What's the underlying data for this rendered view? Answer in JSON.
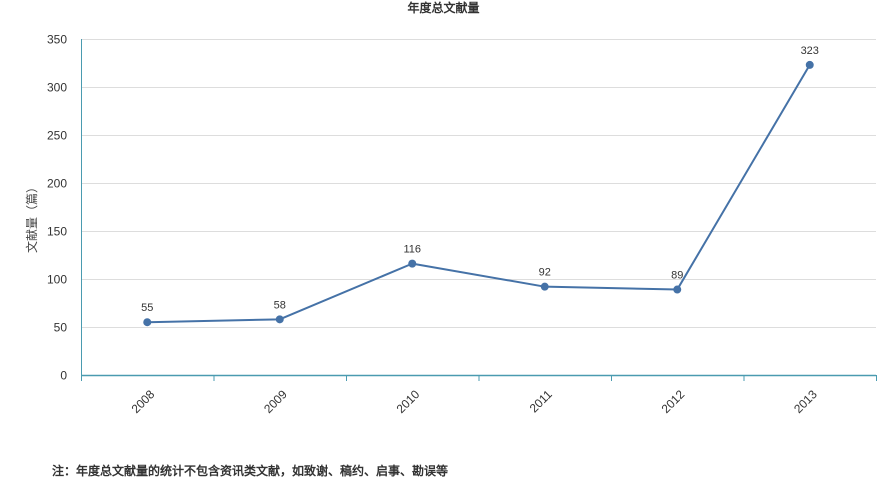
{
  "chart_data": {
    "type": "line",
    "title": "年度总文献量",
    "ylabel": "文献量（篇）",
    "xlabel": "",
    "categories": [
      "2008",
      "2009",
      "2010",
      "2011",
      "2012",
      "2013"
    ],
    "series": [
      {
        "values": [
          55,
          58,
          116,
          92,
          89,
          323
        ],
        "color": "#4572a7"
      }
    ],
    "y_ticks": [
      "0",
      "50",
      "100",
      "150",
      "200",
      "250",
      "300",
      "350"
    ],
    "data_labels": [
      "55",
      "58",
      "116",
      "92",
      "89",
      "323"
    ],
    "ylim": [
      0,
      350
    ],
    "grid": true,
    "legend": "none",
    "axis_color": "#4a9bb0",
    "grid_color": "#dddddd"
  },
  "footnote": "注：年度总文献量的统计不包含资讯类文献，如致谢、稿约、启事、勘误等"
}
